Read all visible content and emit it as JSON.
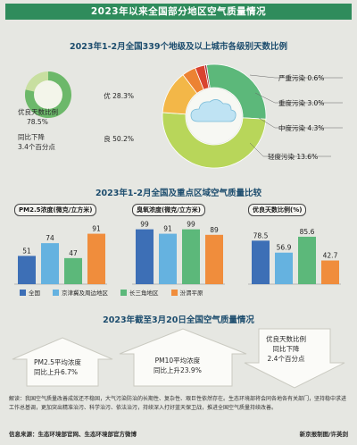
{
  "title": "2023年以来全国部分地区空气质量情况",
  "section1": {
    "title": "2023年1-2月全国339个地级及以上城市各级别天数比例",
    "good_ratio_label": "优良天数比例",
    "good_ratio_value": "78.5%",
    "yoy_label": "同比下降",
    "yoy_value": "3.4个百分点"
  },
  "section2": {
    "title": "2023年1-2月全国及重点区域空气质量比较",
    "panels": [
      {
        "label": "PM2.5浓度(微克/立方米)"
      },
      {
        "label": "臭氧浓度(微克/立方米)"
      },
      {
        "label": "优良天数比例(%)"
      }
    ],
    "legend": [
      {
        "name": "全国",
        "color": "#3d6fb6"
      },
      {
        "name": "京津冀及周边地区",
        "color": "#65b2e0"
      },
      {
        "name": "长三角地区",
        "color": "#5cb87a"
      },
      {
        "name": "汾渭平原",
        "color": "#f08d3c"
      }
    ]
  },
  "section3": {
    "title": "2023年截至3月20日全国空气质量情况",
    "items": [
      {
        "line1": "PM2.5平均浓度",
        "line2": "同比上升6.7%"
      },
      {
        "line1": "PM10平均浓度",
        "line2": "同比上升23.9%"
      },
      {
        "line1": "优良天数比例",
        "line2": "同比下降",
        "line3": "2.4个百分点"
      }
    ]
  },
  "note": "解读：我国空气质量改善成效还不稳固，大气污染防治的长期性、复杂性、艰巨性依然存在。生态环境部将会同各地各有关部门，坚持稳中求进工作总基调，更加突出精准治污、科学治污、依法治污，持续深入打好蓝天保卫战，推进全国空气质量持续改善。",
  "footer": {
    "source": "信息来源：生态环境部官网、生态环境部官方微博",
    "credit": "新京报制图/许英剑"
  },
  "chart_data": [
    {
      "type": "pie",
      "title": "2023年1-2月全国339个地级及以上城市各级别天数比例",
      "series": [
        {
          "name": "优",
          "value": 28.3,
          "label": "优 28.3%",
          "color": "#5cb87a"
        },
        {
          "name": "良",
          "value": 50.2,
          "label": "良 50.2%",
          "color": "#b8d65a"
        },
        {
          "name": "轻度污染",
          "value": 13.6,
          "label": "轻度污染 13.6%",
          "color": "#f3b748"
        },
        {
          "name": "中度污染",
          "value": 4.3,
          "label": "中度污染 4.3%",
          "color": "#ec8233"
        },
        {
          "name": "重度污染",
          "value": 3.0,
          "label": "重度污染 3.0%",
          "color": "#d9432f"
        },
        {
          "name": "严重污染",
          "value": 0.6,
          "label": "严重污染 0.6%",
          "color": "#9a2433"
        }
      ]
    },
    {
      "type": "bar",
      "title": "PM2.5浓度(微克/立方米)",
      "categories": [
        "全国",
        "京津冀及周边地区",
        "长三角地区",
        "汾渭平原"
      ],
      "values": [
        51,
        74,
        47,
        91
      ],
      "ylim": [
        0,
        100
      ]
    },
    {
      "type": "bar",
      "title": "臭氧浓度(微克/立方米)",
      "categories": [
        "全国",
        "京津冀及周边地区",
        "长三角地区",
        "汾渭平原"
      ],
      "values": [
        99,
        91,
        99,
        89
      ],
      "ylim": [
        0,
        100
      ]
    },
    {
      "type": "bar",
      "title": "优良天数比例(%)",
      "categories": [
        "全国",
        "京津冀及周边地区",
        "长三角地区",
        "汾渭平原"
      ],
      "values": [
        78.5,
        56.9,
        85.6,
        42.7
      ],
      "ylim": [
        0,
        100
      ]
    }
  ]
}
